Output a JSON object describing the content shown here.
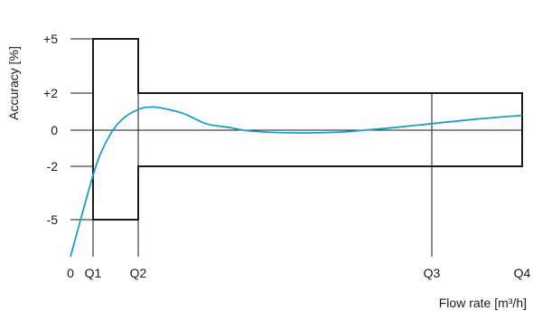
{
  "chart_data": {
    "type": "line",
    "xlabel": "Flow rate [m³/h]",
    "ylabel": "Accuracy [%]",
    "x_ticks": [
      "0",
      "Q1",
      "Q2",
      "Q3",
      "Q4"
    ],
    "x_tick_values": [
      0,
      1,
      2,
      8,
      10
    ],
    "y_ticks": [
      "+5",
      "+2",
      "0",
      "-2",
      "-5"
    ],
    "y_tick_values": [
      5,
      2,
      0,
      -2,
      -5
    ],
    "xlim": [
      0,
      10
    ],
    "ylim": [
      -7,
      5
    ],
    "grid": false,
    "colors": {
      "curve": "#1a9ec9",
      "envelope": "#1a1a1a",
      "reference": "#1a1a1a"
    },
    "envelope": {
      "name": "",
      "points": [
        [
          0.5,
          5
        ],
        [
          1.5,
          5
        ],
        [
          1.5,
          2
        ],
        [
          10,
          2
        ],
        [
          10,
          -2
        ],
        [
          1.5,
          -2
        ],
        [
          1.5,
          -5
        ],
        [
          0.5,
          -5
        ]
      ]
    },
    "reference_lines": [
      {
        "axis": "y",
        "value": 0,
        "from": 0.5,
        "to": 10
      },
      {
        "axis": "x",
        "value": 0.5,
        "from": -7,
        "to": 5
      },
      {
        "axis": "x",
        "value": 1.5,
        "from": -7,
        "to": 5
      },
      {
        "axis": "x",
        "value": 8,
        "from": -7,
        "to": 2
      }
    ],
    "series": [
      {
        "name": "",
        "x": [
          0,
          0.3,
          0.5,
          0.65,
          0.8,
          1.0,
          1.2,
          1.4,
          1.6,
          1.8,
          2.0,
          2.5,
          3,
          3.5,
          4,
          5,
          6,
          6.5,
          7,
          8,
          9,
          10
        ],
        "y": [
          -7,
          -4.3,
          -2.5,
          -1.4,
          -0.6,
          0.2,
          0.7,
          1.0,
          1.2,
          1.25,
          1.2,
          0.9,
          0.35,
          0.15,
          -0.05,
          -0.15,
          -0.1,
          0.0,
          0.1,
          0.35,
          0.6,
          0.8
        ]
      }
    ]
  }
}
